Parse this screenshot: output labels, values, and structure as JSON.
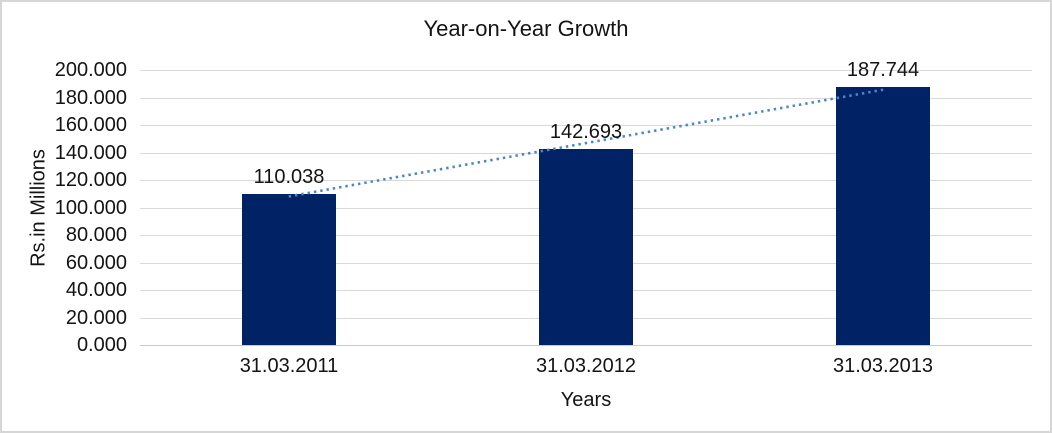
{
  "chart_data": {
    "type": "bar",
    "title": "Year-on-Year Growth",
    "categories": [
      "31.03.2011",
      "31.03.2012",
      "31.03.2013"
    ],
    "values": [
      110.038,
      142.693,
      187.744
    ],
    "data_labels": [
      "110.038",
      "142.693",
      "187.744"
    ],
    "xlabel": "Years",
    "ylabel": "Rs.in Millions",
    "ylim": [
      0,
      200
    ],
    "ytick_step": 20,
    "ytick_labels_top_to_bottom": [
      "200.000",
      "180.000",
      "160.000",
      "140.000",
      "120.000",
      "100.000",
      "80.000",
      "60.000",
      "40.000",
      "20.000",
      "0.000"
    ],
    "grid": true,
    "legend": "none",
    "trendline": {
      "type": "linear",
      "style": "dotted",
      "color": "#4a86c8"
    },
    "colors": {
      "bar": "#012366",
      "gridline": "#d9d9d9",
      "axis_line": "#c9c9c9",
      "text": "#141414",
      "background": "#ffffff",
      "border": "#d6d6d6"
    }
  }
}
